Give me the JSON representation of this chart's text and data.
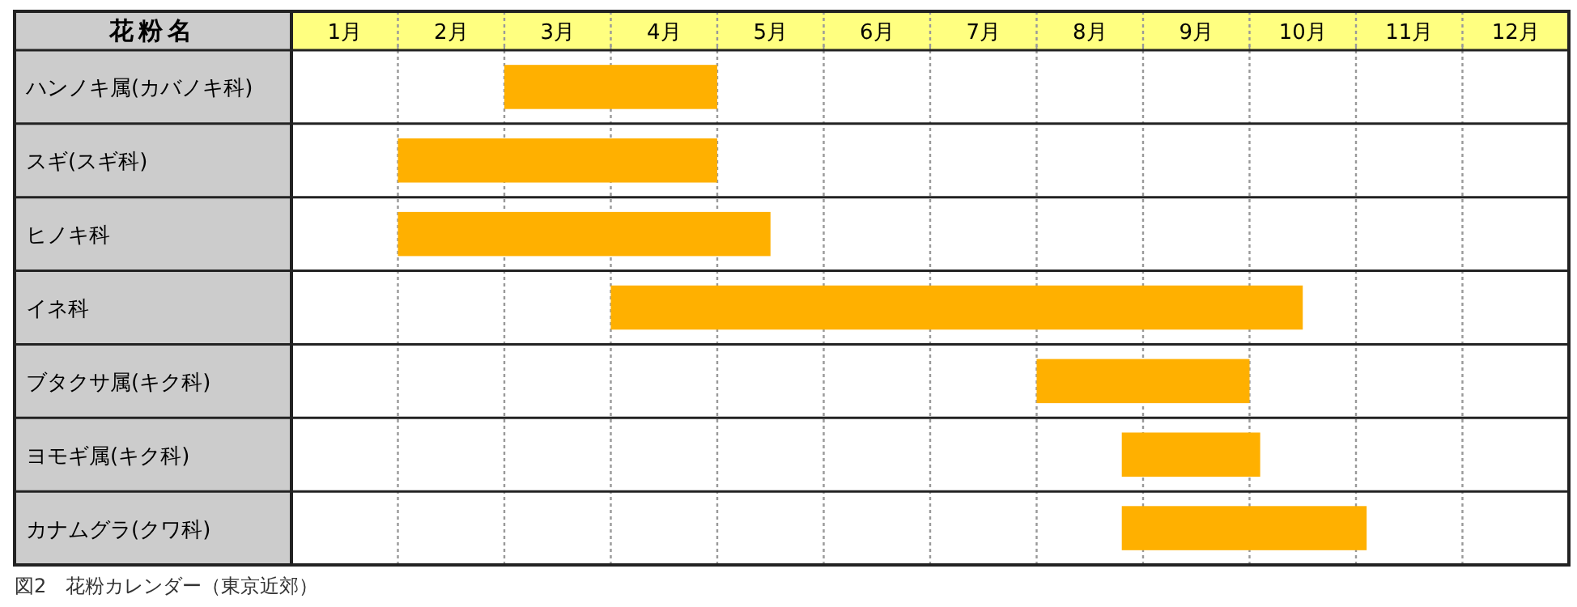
{
  "chart_data": {
    "type": "bar",
    "orientation": "horizontal",
    "ylabel": "花粉名",
    "categories": [
      "ハンノキ属(カバノキ科)",
      "スギ(スギ科)",
      "ヒノキ科",
      "イネ科",
      "ブタクサ属(キク科)",
      "ヨモギ属(キク科)",
      "カナムグラ(クワ科)"
    ],
    "base": [
      2,
      1,
      1,
      3,
      7,
      7.8,
      7.8
    ],
    "values": [
      2,
      3,
      3.5,
      6.5,
      2,
      1.3,
      2.3
    ],
    "color": "#ffb000",
    "xlim": [
      0,
      12
    ],
    "xticks": [
      {
        "value": 0.5,
        "label": "1月"
      },
      {
        "value": 1.5,
        "label": "2月"
      },
      {
        "value": 2.5,
        "label": "3月"
      },
      {
        "value": 3.5,
        "label": "4月"
      },
      {
        "value": 4.5,
        "label": "5月"
      },
      {
        "value": 5.5,
        "label": "6月"
      },
      {
        "value": 6.5,
        "label": "7月"
      },
      {
        "value": 7.5,
        "label": "8月"
      },
      {
        "value": 8.5,
        "label": "9月"
      },
      {
        "value": 9.5,
        "label": "10月"
      },
      {
        "value": 10.5,
        "label": "11月"
      },
      {
        "value": 11.5,
        "label": "12月"
      },
      {
        "value": 1,
        "label": null
      },
      {
        "value": 2,
        "label": null
      },
      {
        "value": 3,
        "label": null
      },
      {
        "value": 4,
        "label": null
      },
      {
        "value": 5,
        "label": null
      },
      {
        "value": 6,
        "label": null
      },
      {
        "value": 7,
        "label": null
      },
      {
        "value": 8,
        "label": null
      },
      {
        "value": 9,
        "label": null
      },
      {
        "value": 10,
        "label": null
      },
      {
        "value": 11,
        "label": null
      }
    ],
    "grid": true,
    "annotations": [
      "図2　花粉カレンダー（東京近郊）"
    ]
  }
}
